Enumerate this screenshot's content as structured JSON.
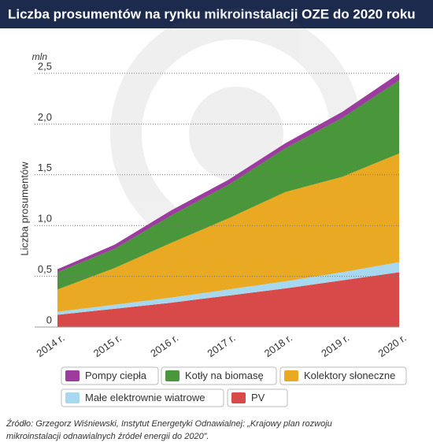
{
  "chart_data": {
    "type": "stacked-area",
    "title": "Liczba prosumentów na rynku mikroinstalacji OZE do 2020 roku",
    "y_unit": "mln",
    "y_label": "Liczba prosumentów",
    "categories": [
      "2014 r.",
      "2015 r.",
      "2016 r.",
      "2017 r.",
      "2018 r.",
      "2019 r.",
      "2020 r."
    ],
    "series": [
      {
        "name": "Pompy ciepła",
        "color": "#9b3c9e",
        "values": [
          0.03,
          0.04,
          0.05,
          0.05,
          0.05,
          0.06,
          0.07
        ]
      },
      {
        "name": "Kotły na biomasę",
        "color": "#4a973b",
        "values": [
          0.17,
          0.19,
          0.27,
          0.33,
          0.43,
          0.58,
          0.72
        ]
      },
      {
        "name": "Kolektory słoneczne",
        "color": "#e9a922",
        "values": [
          0.22,
          0.36,
          0.54,
          0.7,
          0.88,
          0.94,
          1.07
        ]
      },
      {
        "name": "Małe elektrownie wiatrowe",
        "color": "#a6d9ef",
        "values": [
          0.03,
          0.04,
          0.05,
          0.06,
          0.07,
          0.08,
          0.1
        ]
      },
      {
        "name": "PV",
        "color": "#d84a4a",
        "values": [
          0.12,
          0.18,
          0.24,
          0.31,
          0.38,
          0.46,
          0.54
        ]
      }
    ],
    "ylim": [
      0,
      2.5
    ],
    "yticks": [
      0,
      {
        "value": 0.5,
        "label": "0,5"
      },
      {
        "value": 1.0,
        "label": "1,0"
      },
      {
        "value": 1.5,
        "label": "1,5"
      },
      {
        "value": 2.0,
        "label": "2,0"
      },
      {
        "value": 2.5,
        "label": "2,5"
      }
    ],
    "grid": true,
    "source": [
      "Źródło: Grzegorz Wiśniewski, Instytut Energetyki Odnawialnej: „Krajowy plan rozwoju",
      "mikroinstalacji odnawialnych źródeł energii do 2020”."
    ]
  }
}
